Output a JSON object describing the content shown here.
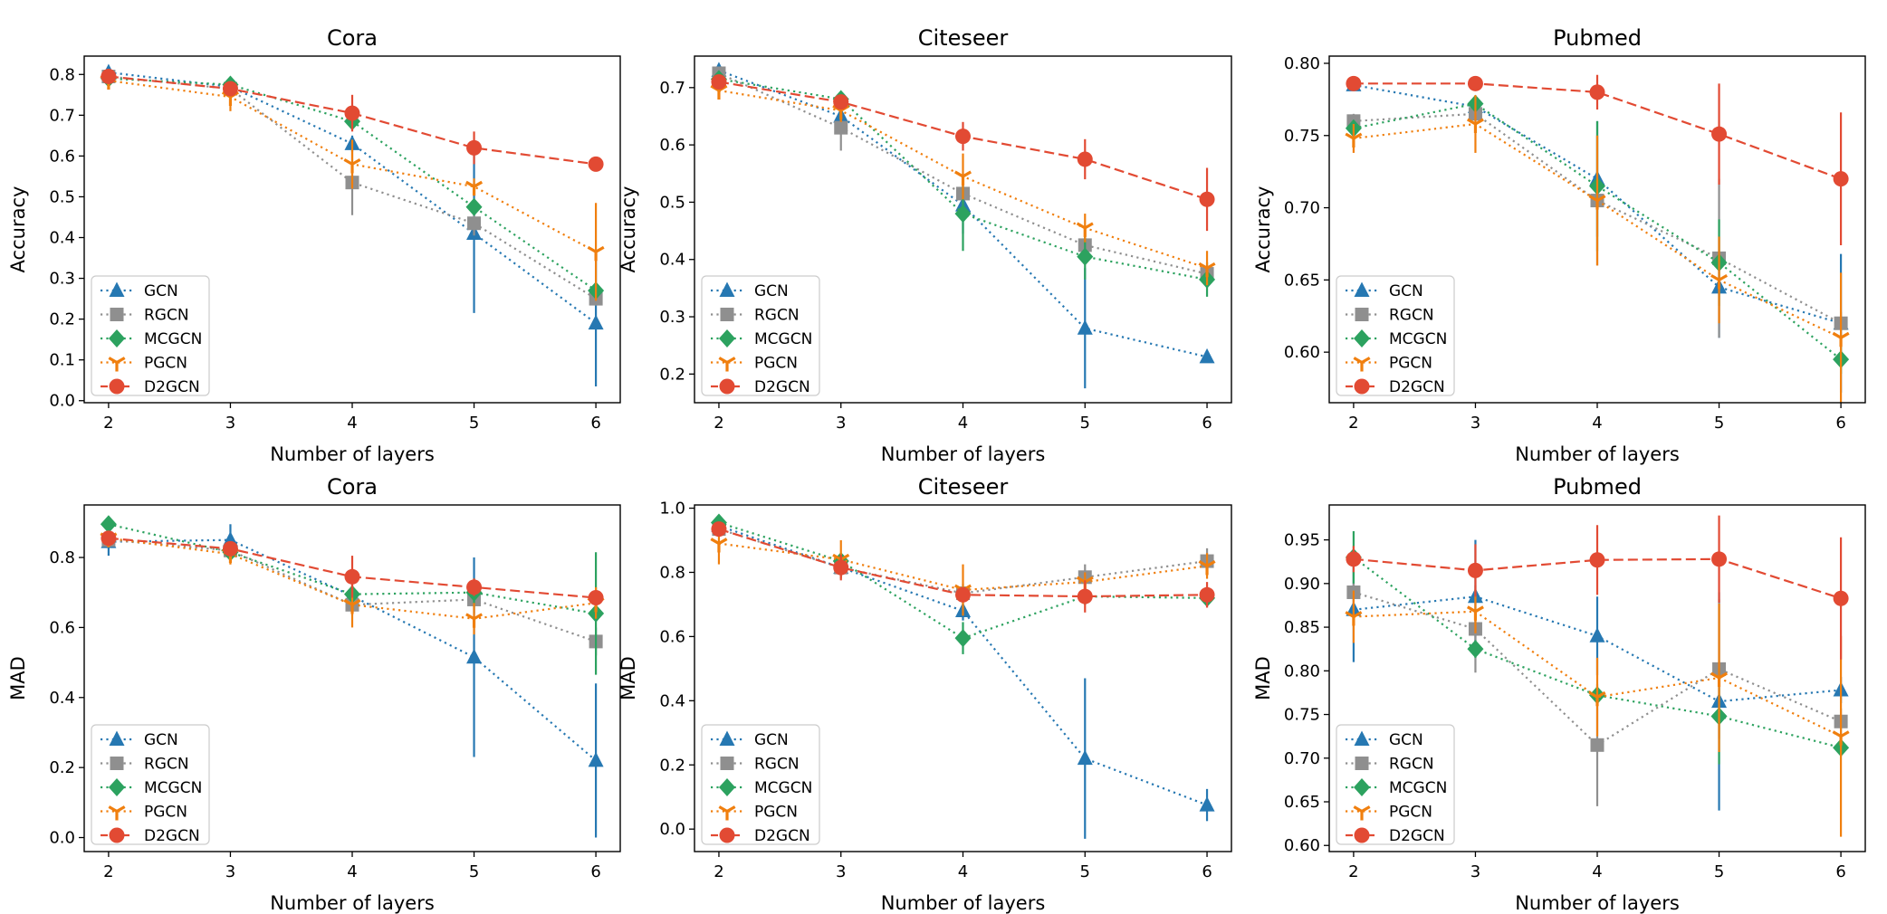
{
  "chart_data": [
    {
      "type": "line",
      "title": "Cora",
      "xlabel": "Number of layers",
      "ylabel": "Accuracy",
      "x": [
        2,
        3,
        4,
        5,
        6
      ],
      "xlim": [
        1.8,
        6.2
      ],
      "ylim": [
        -0.005,
        0.845
      ],
      "yticks": [
        0.0,
        0.1,
        0.2,
        0.3,
        0.4,
        0.5,
        0.6,
        0.7,
        0.8
      ],
      "ytick_labels": [
        "0.0",
        "0.1",
        "0.2",
        "0.3",
        "0.4",
        "0.5",
        "0.6",
        "0.7",
        "0.8"
      ],
      "legend_loc": "lower-left",
      "series": [
        {
          "name": "GCN",
          "values": [
            0.805,
            0.77,
            0.63,
            0.41,
            0.19
          ],
          "err": [
            0.01,
            0.01,
            0.02,
            0.195,
            0.155
          ]
        },
        {
          "name": "RGCN",
          "values": [
            0.795,
            0.765,
            0.535,
            0.435,
            0.25
          ],
          "err": [
            0.01,
            0.01,
            0.08,
            0.03,
            0.01
          ]
        },
        {
          "name": "MCGCN",
          "values": [
            0.79,
            0.775,
            0.685,
            0.475,
            0.27
          ],
          "err": [
            0.01,
            0.01,
            0.02,
            0.02,
            0.01
          ]
        },
        {
          "name": "PGCN",
          "values": [
            0.785,
            0.745,
            0.58,
            0.525,
            0.365
          ],
          "err": [
            0.01,
            0.035,
            0.06,
            0.02,
            0.12
          ]
        },
        {
          "name": "D2GCN",
          "values": [
            0.795,
            0.765,
            0.705,
            0.62,
            0.58
          ],
          "err": [
            0.01,
            0.01,
            0.045,
            0.04,
            0.015
          ]
        }
      ]
    },
    {
      "type": "line",
      "title": "Citeseer",
      "xlabel": "Number of layers",
      "ylabel": "Accuracy",
      "x": [
        2,
        3,
        4,
        5,
        6
      ],
      "xlim": [
        1.8,
        6.2
      ],
      "ylim": [
        0.15,
        0.755
      ],
      "yticks": [
        0.2,
        0.3,
        0.4,
        0.5,
        0.6,
        0.7
      ],
      "ytick_labels": [
        "0.2",
        "0.3",
        "0.4",
        "0.5",
        "0.6",
        "0.7"
      ],
      "legend_loc": "lower-left",
      "series": [
        {
          "name": "GCN",
          "values": [
            0.73,
            0.65,
            0.495,
            0.28,
            0.23
          ],
          "err": [
            0.01,
            0.02,
            0.05,
            0.105,
            0.005
          ]
        },
        {
          "name": "RGCN",
          "values": [
            0.725,
            0.63,
            0.515,
            0.425,
            0.375
          ],
          "err": [
            0.01,
            0.04,
            0.025,
            0.015,
            0.01
          ]
        },
        {
          "name": "MCGCN",
          "values": [
            0.715,
            0.68,
            0.48,
            0.405,
            0.365
          ],
          "err": [
            0.01,
            0.01,
            0.065,
            0.04,
            0.03
          ]
        },
        {
          "name": "PGCN",
          "values": [
            0.695,
            0.66,
            0.545,
            0.455,
            0.385
          ],
          "err": [
            0.01,
            0.02,
            0.04,
            0.025,
            0.03
          ]
        },
        {
          "name": "D2GCN",
          "values": [
            0.71,
            0.675,
            0.615,
            0.575,
            0.505
          ],
          "err": [
            0.01,
            0.01,
            0.025,
            0.035,
            0.055
          ]
        }
      ]
    },
    {
      "type": "line",
      "title": "Pubmed",
      "xlabel": "Number of layers",
      "ylabel": "Accuracy",
      "x": [
        2,
        3,
        4,
        5,
        6
      ],
      "xlim": [
        1.8,
        6.2
      ],
      "ylim": [
        0.565,
        0.805
      ],
      "yticks": [
        0.6,
        0.65,
        0.7,
        0.75,
        0.8
      ],
      "ytick_labels": [
        "0.60",
        "0.65",
        "0.70",
        "0.75",
        "0.80"
      ],
      "legend_loc": "lower-left",
      "series": [
        {
          "name": "GCN",
          "values": [
            0.785,
            0.77,
            0.72,
            0.645,
            0.62
          ],
          "err": [
            0.003,
            0.005,
            0.04,
            0.035,
            0.048
          ]
        },
        {
          "name": "RGCN",
          "values": [
            0.76,
            0.765,
            0.705,
            0.665,
            0.62
          ],
          "err": [
            0.005,
            0.005,
            0.045,
            0.055,
            0.008
          ]
        },
        {
          "name": "MCGCN",
          "values": [
            0.755,
            0.772,
            0.715,
            0.662,
            0.595
          ],
          "err": [
            0.005,
            0.005,
            0.045,
            0.03,
            0.01
          ]
        },
        {
          "name": "PGCN",
          "values": [
            0.748,
            0.758,
            0.705,
            0.65,
            0.61
          ],
          "err": [
            0.01,
            0.02,
            0.045,
            0.03,
            0.045
          ]
        },
        {
          "name": "D2GCN",
          "values": [
            0.786,
            0.786,
            0.78,
            0.751,
            0.72
          ],
          "err": [
            0.003,
            0.003,
            0.012,
            0.035,
            0.046
          ]
        }
      ]
    },
    {
      "type": "line",
      "title": "Cora",
      "xlabel": "Number of layers",
      "ylabel": "MAD",
      "x": [
        2,
        3,
        4,
        5,
        6
      ],
      "xlim": [
        1.8,
        6.2
      ],
      "ylim": [
        -0.04,
        0.95
      ],
      "yticks": [
        0.0,
        0.2,
        0.4,
        0.6,
        0.8
      ],
      "ytick_labels": [
        "0.0",
        "0.2",
        "0.4",
        "0.6",
        "0.8"
      ],
      "legend_loc": "lower-left",
      "series": [
        {
          "name": "GCN",
          "values": [
            0.845,
            0.85,
            0.69,
            0.515,
            0.22
          ],
          "err": [
            0.04,
            0.045,
            0.03,
            0.285,
            0.22
          ]
        },
        {
          "name": "RGCN",
          "values": [
            0.85,
            0.82,
            0.665,
            0.68,
            0.56
          ],
          "err": [
            0.01,
            0.01,
            0.03,
            0.04,
            0.04
          ]
        },
        {
          "name": "MCGCN",
          "values": [
            0.895,
            0.815,
            0.695,
            0.7,
            0.64
          ],
          "err": [
            0.01,
            0.01,
            0.02,
            0.04,
            0.175
          ]
        },
        {
          "name": "PGCN",
          "values": [
            0.855,
            0.81,
            0.665,
            0.625,
            0.67
          ],
          "err": [
            0.01,
            0.03,
            0.065,
            0.045,
            0.045
          ]
        },
        {
          "name": "D2GCN",
          "values": [
            0.855,
            0.825,
            0.745,
            0.715,
            0.685
          ],
          "err": [
            0.01,
            0.01,
            0.06,
            0.025,
            0.02
          ]
        }
      ]
    },
    {
      "type": "line",
      "title": "Citeseer",
      "xlabel": "Number of layers",
      "ylabel": "MAD",
      "x": [
        2,
        3,
        4,
        5,
        6
      ],
      "xlim": [
        1.8,
        6.2
      ],
      "ylim": [
        -0.07,
        1.01
      ],
      "yticks": [
        0.0,
        0.2,
        0.4,
        0.6,
        0.8,
        1.0
      ],
      "ytick_labels": [
        "0.0",
        "0.2",
        "0.4",
        "0.6",
        "0.8",
        "1.0"
      ],
      "legend_loc": "lower-left",
      "series": [
        {
          "name": "GCN",
          "values": [
            0.945,
            0.815,
            0.68,
            0.22,
            0.075
          ],
          "err": [
            0.01,
            0.03,
            0.03,
            0.25,
            0.05
          ]
        },
        {
          "name": "RGCN",
          "values": [
            0.935,
            0.815,
            0.735,
            0.785,
            0.835
          ],
          "err": [
            0.01,
            0.02,
            0.03,
            0.04,
            0.04
          ]
        },
        {
          "name": "MCGCN",
          "values": [
            0.955,
            0.835,
            0.595,
            0.725,
            0.72
          ],
          "err": [
            0.01,
            0.02,
            0.05,
            0.025,
            0.02
          ]
        },
        {
          "name": "PGCN",
          "values": [
            0.89,
            0.84,
            0.745,
            0.77,
            0.82
          ],
          "err": [
            0.065,
            0.06,
            0.08,
            0.03,
            0.04
          ]
        },
        {
          "name": "D2GCN",
          "values": [
            0.935,
            0.815,
            0.73,
            0.725,
            0.73
          ],
          "err": [
            0.01,
            0.04,
            0.015,
            0.05,
            0.04
          ]
        }
      ]
    },
    {
      "type": "line",
      "title": "Pubmed",
      "xlabel": "Number of layers",
      "ylabel": "MAD",
      "x": [
        2,
        3,
        4,
        5,
        6
      ],
      "xlim": [
        1.8,
        6.2
      ],
      "ylim": [
        0.593,
        0.99
      ],
      "yticks": [
        0.6,
        0.65,
        0.7,
        0.75,
        0.8,
        0.85,
        0.9,
        0.95
      ],
      "ytick_labels": [
        "0.60",
        "0.65",
        "0.70",
        "0.75",
        "0.80",
        "0.85",
        "0.90",
        "0.95"
      ],
      "legend_loc": "lower-left",
      "series": [
        {
          "name": "GCN",
          "values": [
            0.87,
            0.885,
            0.84,
            0.765,
            0.778
          ],
          "err": [
            0.06,
            0.065,
            0.045,
            0.125,
            0.015
          ]
        },
        {
          "name": "RGCN",
          "values": [
            0.89,
            0.848,
            0.715,
            0.802,
            0.742
          ],
          "err": [
            0.025,
            0.05,
            0.07,
            0.08,
            0.015
          ]
        },
        {
          "name": "MCGCN",
          "values": [
            0.93,
            0.825,
            0.772,
            0.748,
            0.712
          ],
          "err": [
            0.03,
            0.01,
            0.01,
            0.055,
            0.01
          ]
        },
        {
          "name": "PGCN",
          "values": [
            0.862,
            0.868,
            0.77,
            0.792,
            0.725
          ],
          "err": [
            0.03,
            0.025,
            0.045,
            0.085,
            0.115
          ]
        },
        {
          "name": "D2GCN",
          "values": [
            0.928,
            0.915,
            0.927,
            0.928,
            0.883
          ],
          "err": [
            0.015,
            0.03,
            0.04,
            0.05,
            0.07
          ]
        }
      ]
    }
  ],
  "series_styles": [
    {
      "name": "GCN",
      "color": "#2678b2",
      "marker": "triangle-up",
      "dash": "dotted"
    },
    {
      "name": "RGCN",
      "color": "#8f8f8f",
      "marker": "square",
      "dash": "dotted"
    },
    {
      "name": "MCGCN",
      "color": "#2ca25f",
      "marker": "diamond",
      "dash": "dotted"
    },
    {
      "name": "PGCN",
      "color": "#f07f0e",
      "marker": "tri-down",
      "dash": "dotted"
    },
    {
      "name": "D2GCN",
      "color": "#e24a33",
      "marker": "circle",
      "dash": "dashed"
    }
  ]
}
